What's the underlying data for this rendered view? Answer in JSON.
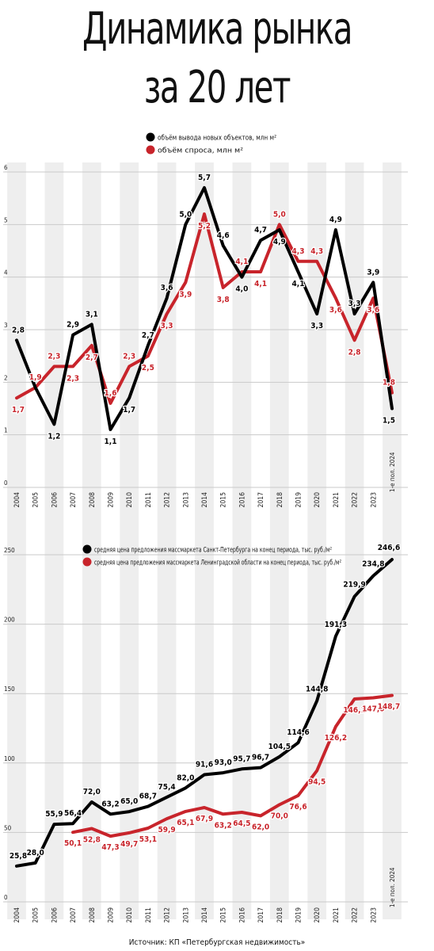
{
  "title": {
    "line1": "Динамика рынка",
    "line2": "за 20 лет"
  },
  "source": "Источник: КП «Петербургская недвижимость»",
  "colors": {
    "black_series": "#000000",
    "red_series": "#c8242b",
    "band": "#eeeeee",
    "grid": "#c9c9c9"
  },
  "chart_data": [
    {
      "type": "line",
      "categories": [
        "2004",
        "2005",
        "2006",
        "2007",
        "2008",
        "2009",
        "2010",
        "2011",
        "2012",
        "2013",
        "2014",
        "2015",
        "2016",
        "2017",
        "2018",
        "2019",
        "2020",
        "2021",
        "2022",
        "2023",
        "1-е пол. 2024"
      ],
      "series": [
        {
          "name": "объём вывода новых объектов, млн м²",
          "values": [
            2.8,
            1.9,
            1.2,
            2.9,
            3.1,
            1.1,
            1.7,
            2.7,
            3.6,
            5.0,
            5.7,
            4.6,
            4.0,
            4.7,
            4.9,
            4.1,
            3.3,
            4.9,
            3.3,
            3.9,
            1.5
          ],
          "labels": [
            "2,8",
            "1,9",
            "1,2",
            "2,9",
            "3,1",
            "1,1",
            "1,7",
            "2,7",
            "3,6",
            "5,0",
            "5,7",
            "4,6",
            "4,0",
            "4,7",
            "4,9",
            "4,1",
            "3,3",
            "4,9",
            "3,3",
            "3,9",
            "1,5"
          ]
        },
        {
          "name": "объём спроса, млн м²",
          "values": [
            1.7,
            1.9,
            2.3,
            2.3,
            2.7,
            1.6,
            2.3,
            2.5,
            3.3,
            3.9,
            5.2,
            3.8,
            4.1,
            4.1,
            5.0,
            4.3,
            4.3,
            3.6,
            2.8,
            3.6,
            1.8
          ],
          "labels": [
            "1,7",
            "1,9",
            "2,3",
            "2,3",
            "2,7",
            "1,6",
            "2,3",
            "2,5",
            "3,3",
            "3,9",
            "5,2",
            "3,8",
            "4,1",
            "4,1",
            "5,0",
            "4,3",
            "4,3",
            "3,6",
            "2,8",
            "3,6",
            "1,8"
          ]
        }
      ],
      "yticks": [
        "0",
        "1",
        "2",
        "3",
        "4",
        "5",
        "6"
      ],
      "ylim": [
        0,
        6
      ]
    },
    {
      "type": "line",
      "categories": [
        "2004",
        "2005",
        "2006",
        "2007",
        "2008",
        "2009",
        "2010",
        "2011",
        "2012",
        "2013",
        "2014",
        "2015",
        "2016",
        "2017",
        "2018",
        "2019",
        "2020",
        "2021",
        "2022",
        "2023",
        "1-е пол. 2024"
      ],
      "series": [
        {
          "name": "средняя цена предложения массмаркета Санкт-Петербурга на конец периода, тыс. руб./м²",
          "values": [
            25.8,
            28.0,
            55.9,
            56.4,
            72.0,
            63.2,
            65.0,
            68.7,
            75.4,
            82.0,
            91.6,
            93.0,
            95.7,
            96.7,
            104.5,
            114.6,
            144.8,
            191.3,
            219.9,
            234.8,
            246.6
          ],
          "labels": [
            "25,8",
            "28,0",
            "55,9",
            "56,4",
            "72,0",
            "63,2",
            "65,0",
            "68,7",
            "75,4",
            "82,0",
            "91,6",
            "93,0",
            "95,7",
            "96,7",
            "104,5",
            "114,6",
            "144,8",
            "191,3",
            "219,9",
            "234,8",
            "246,6"
          ]
        },
        {
          "name": "средняя цена предложения массмаркета Ленинградской области на конец периода, тыс. руб./м²",
          "values": [
            null,
            null,
            null,
            50.1,
            52.8,
            47.3,
            49.7,
            53.1,
            59.9,
            65.1,
            67.9,
            63.2,
            64.5,
            62.0,
            70.0,
            76.6,
            94.5,
            126.2,
            146.1,
            147.0,
            148.7
          ],
          "labels": [
            "",
            "",
            "",
            "50,1",
            "52,8",
            "47,3",
            "49,7",
            "53,1",
            "59,9",
            "65,1",
            "67,9",
            "63,2",
            "64,5",
            "62,0",
            "70,0",
            "76,6",
            "94,5",
            "126,2",
            "146,1",
            "147,0",
            "148,7"
          ]
        }
      ],
      "yticks": [
        "0",
        "50",
        "100",
        "150",
        "200",
        "250"
      ],
      "ylim": [
        0,
        250
      ]
    }
  ]
}
